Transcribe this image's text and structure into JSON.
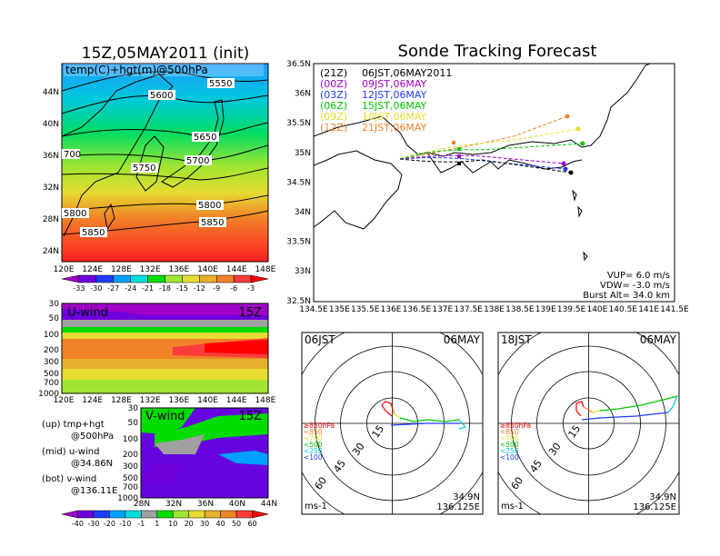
{
  "left_panel": {
    "title": "15Z,05MAY2011 (init)",
    "map_label": "temp(C)+hgt(m)@500hPa",
    "lat_ticks": [
      "44N",
      "40N",
      "36N",
      "32N",
      "28N",
      "24N"
    ],
    "lon_ticks": [
      "120E",
      "124E",
      "128E",
      "132E",
      "136E",
      "140E",
      "144E",
      "148E"
    ],
    "height_contours": [
      "5550",
      "5600",
      "5650",
      "5700",
      "5750",
      "5800",
      "5850",
      "700",
      "5800",
      "5850"
    ],
    "temp_colorbar": [
      "-33",
      "-30",
      "-27",
      "-24",
      "-21",
      "-18",
      "-15",
      "-12",
      "-9",
      "-6",
      "-3"
    ],
    "temp_colors": [
      "#a000c8",
      "#6e00dc",
      "#1e3cff",
      "#00a0ff",
      "#00dcdc",
      "#00dc00",
      "#a0e632",
      "#e6dc32",
      "#e6af2d",
      "#f08228",
      "#fa3c3c",
      "#ff0000"
    ]
  },
  "uwind_panel": {
    "label": "U-wind",
    "time": "15Z",
    "p_ticks": [
      "30",
      "50",
      "100",
      "200",
      "300",
      "500",
      "700",
      "1000"
    ],
    "lon_ticks": [
      "120E",
      "124E",
      "128E",
      "132E",
      "136E",
      "140E",
      "144E",
      "148E"
    ]
  },
  "vwind_panel": {
    "label": "V-wind",
    "time": "15Z",
    "p_ticks": [
      "30",
      "50",
      "100",
      "200",
      "300",
      "500",
      "700",
      "1000"
    ],
    "lat_ticks": [
      "28N",
      "32N",
      "36N",
      "40N",
      "44N"
    ],
    "colorbar": [
      "-40",
      "-30",
      "-20",
      "-10",
      "-1",
      "1",
      "10",
      "20",
      "30",
      "40",
      "50",
      "60"
    ],
    "colors": [
      "#a000c8",
      "#6e00dc",
      "#1e3cff",
      "#00a0ff",
      "#00dcdc",
      "#a0a0a0",
      "#00dc00",
      "#a0e632",
      "#e6dc32",
      "#e6af2d",
      "#f08228",
      "#fa3c3c",
      "#ff0000"
    ]
  },
  "legend_notes": [
    {
      "a": "(up) tmp+hgt",
      "b": "@500hPa"
    },
    {
      "a": "(mid) u-wind",
      "b": "@34.86N"
    },
    {
      "a": "(bot) v-wind",
      "b": "@136.11E"
    }
  ],
  "tracking": {
    "title": "Sonde Tracking Forecast",
    "lat_ticks": [
      "36.5N",
      "36N",
      "35.5N",
      "35N",
      "34.5N",
      "34N",
      "33.5N",
      "33N",
      "32.5N"
    ],
    "lon_ticks": [
      "134.5E",
      "135E",
      "135.5E",
      "136E",
      "136.5E",
      "137E",
      "137.5E",
      "138E",
      "138.5E",
      "139E",
      "139.5E",
      "140E",
      "140.5E",
      "141E",
      "141.5E"
    ],
    "launches": [
      {
        "code": "(21Z)",
        "time": "06JST,06MAY2011",
        "color": "#000000"
      },
      {
        "code": "(00Z)",
        "time": "09JST,06MAY",
        "color": "#a000c8"
      },
      {
        "code": "(03Z)",
        "time": "12JST,06MAY",
        "color": "#1e3cff"
      },
      {
        "code": "(06Z)",
        "time": "15JST,06MAY",
        "color": "#00c800"
      },
      {
        "code": "(09Z)",
        "time": "18JST,06MAY",
        "color": "#e6dc32"
      },
      {
        "code": "(12Z)",
        "time": "21JST,06MAY",
        "color": "#f08228"
      }
    ],
    "vup": "VUP=  6.0  m/s",
    "vdw": "VDW= -3.0  m/s",
    "burst": "Burst Alt= 34.0  km"
  },
  "hodo1": {
    "time": "06JST",
    "date": "06MAY",
    "unit": "ms-1",
    "lat": "34.9N",
    "lon": "136.125E",
    "rings": [
      "15",
      "30",
      "45",
      "60"
    ],
    "levels": [
      {
        "label": "≥850hPa",
        "color": "#ff0000"
      },
      {
        "label": "<850",
        "color": "#f08228"
      },
      {
        "label": "<700",
        "color": "#e6dc32"
      },
      {
        "label": "<500",
        "color": "#00c800"
      },
      {
        "label": "<250",
        "color": "#00c8c8"
      },
      {
        "label": "<100",
        "color": "#1e3cff"
      }
    ]
  },
  "hodo2": {
    "time": "18JST",
    "date": "06MAY",
    "unit": "ms-1",
    "lat": "34.9N",
    "lon": "136.125E",
    "rings": [
      "15",
      "30",
      "45",
      "60"
    ],
    "levels": [
      {
        "label": "≥850hPa",
        "color": "#ff0000"
      },
      {
        "label": "<850",
        "color": "#f08228"
      },
      {
        "label": "<700",
        "color": "#e6dc32"
      },
      {
        "label": "<500",
        "color": "#00c800"
      },
      {
        "label": "<250",
        "color": "#00c8c8"
      },
      {
        "label": "<100",
        "color": "#1e3cff"
      }
    ]
  }
}
